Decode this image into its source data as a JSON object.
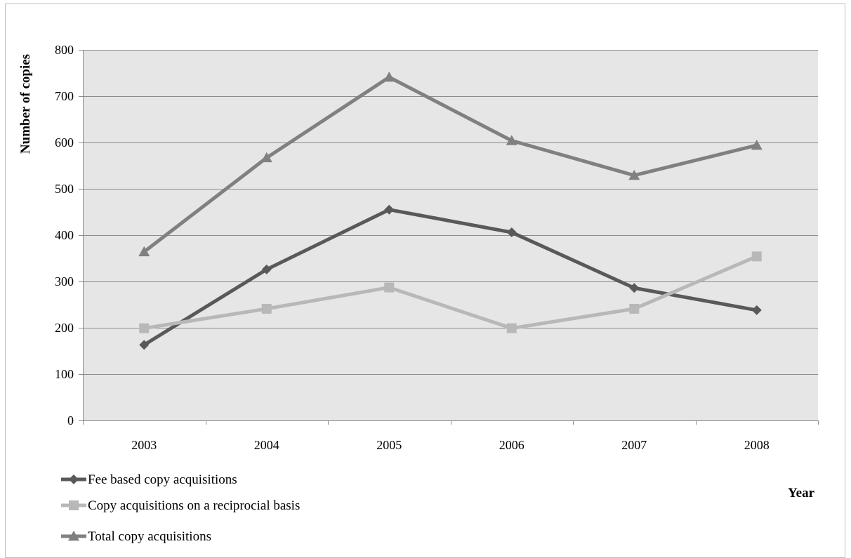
{
  "chart_data": {
    "type": "line",
    "title": "",
    "xlabel": "Year",
    "ylabel": "Number of copies",
    "categories": [
      "2003",
      "2004",
      "2005",
      "2006",
      "2007",
      "2008"
    ],
    "ylim": [
      0,
      800
    ],
    "yticks": [
      "0",
      "100",
      "200",
      "300",
      "400",
      "500",
      "600",
      "700",
      "800"
    ],
    "grid": true,
    "legend_position": "bottom-left",
    "series": [
      {
        "name": "Fee based copy acquisitions",
        "values": [
          163,
          326,
          455,
          406,
          286,
          238
        ],
        "color": "#595959",
        "marker": "diamond"
      },
      {
        "name": "Copy acquisitions on a reciprocial basis",
        "values": [
          199,
          241,
          287,
          199,
          241,
          354
        ],
        "color": "#b8b8b8",
        "marker": "square"
      },
      {
        "name": "Total copy acquisitions",
        "values": [
          364,
          567,
          741,
          604,
          529,
          594
        ],
        "color": "#808080",
        "marker": "triangle"
      }
    ],
    "plot_background": "#e6e6e6",
    "gridline_color": "#8c8c8c"
  }
}
